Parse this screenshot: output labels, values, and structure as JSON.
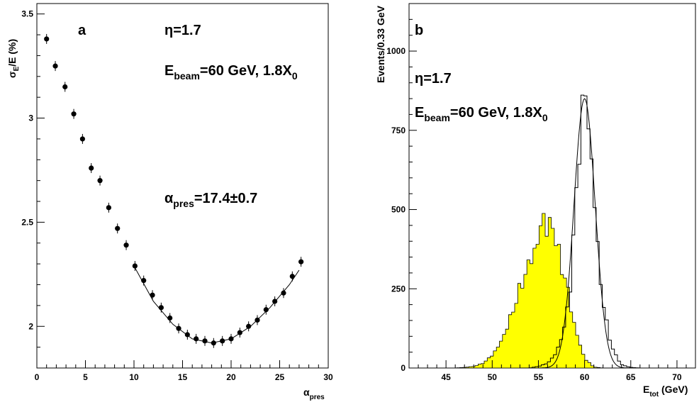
{
  "chart_data": [
    {
      "type": "scatter",
      "panel_label": "a",
      "annotations": {
        "eta": "η=1.7",
        "beam_main": "E",
        "beam_sub": "beam",
        "beam_rest": "=60 GeV, 1.8X",
        "beam_sub0": "0",
        "alpha_main": "α",
        "alpha_sub": "pres",
        "alpha_rest": "=17.4±0.7"
      },
      "ylabel": {
        "main": "σ",
        "sub": "E",
        "rest": "/E (%)"
      },
      "xlabel": {
        "main": "α",
        "sub": "pres"
      },
      "xlim": [
        0,
        30
      ],
      "ylim": [
        1.8,
        3.55
      ],
      "xticks": [
        "0",
        "5",
        "10",
        "15",
        "20",
        "25",
        "30"
      ],
      "yticks": [
        "2",
        "2.5",
        "3",
        "3.5"
      ],
      "series": [
        {
          "style": "markers",
          "x": [
            1.0,
            1.9,
            2.9,
            3.8,
            4.7,
            5.6,
            6.5,
            7.4,
            8.3,
            9.2,
            10.1,
            11.0,
            11.9,
            12.8,
            13.7,
            14.6,
            15.5,
            16.4,
            17.3,
            18.2,
            19.1,
            20.0,
            20.9,
            21.8,
            22.7,
            23.6,
            24.5,
            25.4,
            26.3,
            27.2
          ],
          "y": [
            3.38,
            3.25,
            3.15,
            3.02,
            2.9,
            2.76,
            2.7,
            2.57,
            2.47,
            2.39,
            2.29,
            2.22,
            2.15,
            2.09,
            2.04,
            1.99,
            1.96,
            1.94,
            1.93,
            1.92,
            1.93,
            1.94,
            1.97,
            2.0,
            2.03,
            2.08,
            2.12,
            2.16,
            2.24,
            2.31
          ]
        },
        {
          "style": "line",
          "fit": "parabola",
          "x": [
            10,
            12,
            14,
            16,
            18,
            20,
            22,
            24,
            26,
            27
          ],
          "y": [
            2.29,
            2.12,
            2.01,
            1.94,
            1.92,
            1.94,
            2.0,
            2.09,
            2.2,
            2.27
          ]
        }
      ]
    },
    {
      "type": "histogram",
      "panel_label": "b",
      "annotations": {
        "eta": "η=1.7",
        "beam_main": "E",
        "beam_sub": "beam",
        "beam_rest": "=60 GeV, 1.8X",
        "beam_sub0": "0"
      },
      "ylabel": "Events/0.33 GeV",
      "xlabel": {
        "main": "E",
        "sub": "tot",
        "rest": " (GeV)"
      },
      "xlim": [
        41,
        72
      ],
      "ylim": [
        0,
        1150
      ],
      "xticks": [
        "45",
        "50",
        "55",
        "60",
        "65",
        "70"
      ],
      "yticks": [
        "0",
        "250",
        "500",
        "750",
        "1000"
      ],
      "series": [
        {
          "style": "filled",
          "color": "#ffff00",
          "x": [
            47,
            48,
            49,
            50,
            51,
            52,
            53,
            54,
            55,
            55.5,
            56,
            56.5,
            57,
            58,
            59,
            60,
            61
          ],
          "y": [
            2,
            5,
            15,
            40,
            85,
            160,
            250,
            330,
            400,
            495,
            420,
            470,
            380,
            270,
            120,
            30,
            3
          ]
        },
        {
          "style": "outline",
          "color": "#000000",
          "x": [
            55,
            56,
            57,
            58,
            58.5,
            59,
            59.5,
            60,
            60.5,
            61,
            61.5,
            62,
            63,
            64,
            65
          ],
          "y": [
            5,
            15,
            50,
            150,
            280,
            500,
            730,
            890,
            750,
            550,
            350,
            200,
            60,
            10,
            2
          ]
        },
        {
          "style": "gaussian-fit",
          "mean": 60.0,
          "sigma": 1.15,
          "peak": 850
        }
      ]
    }
  ]
}
